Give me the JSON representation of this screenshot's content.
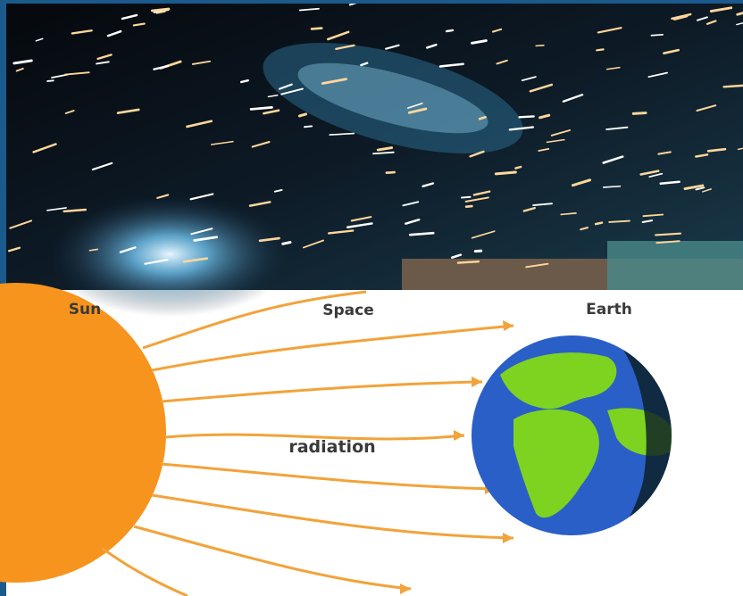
{
  "labels": {
    "sun": "Sun",
    "space": "Space",
    "earth": "Earth",
    "radiation": "radiation"
  }
}
